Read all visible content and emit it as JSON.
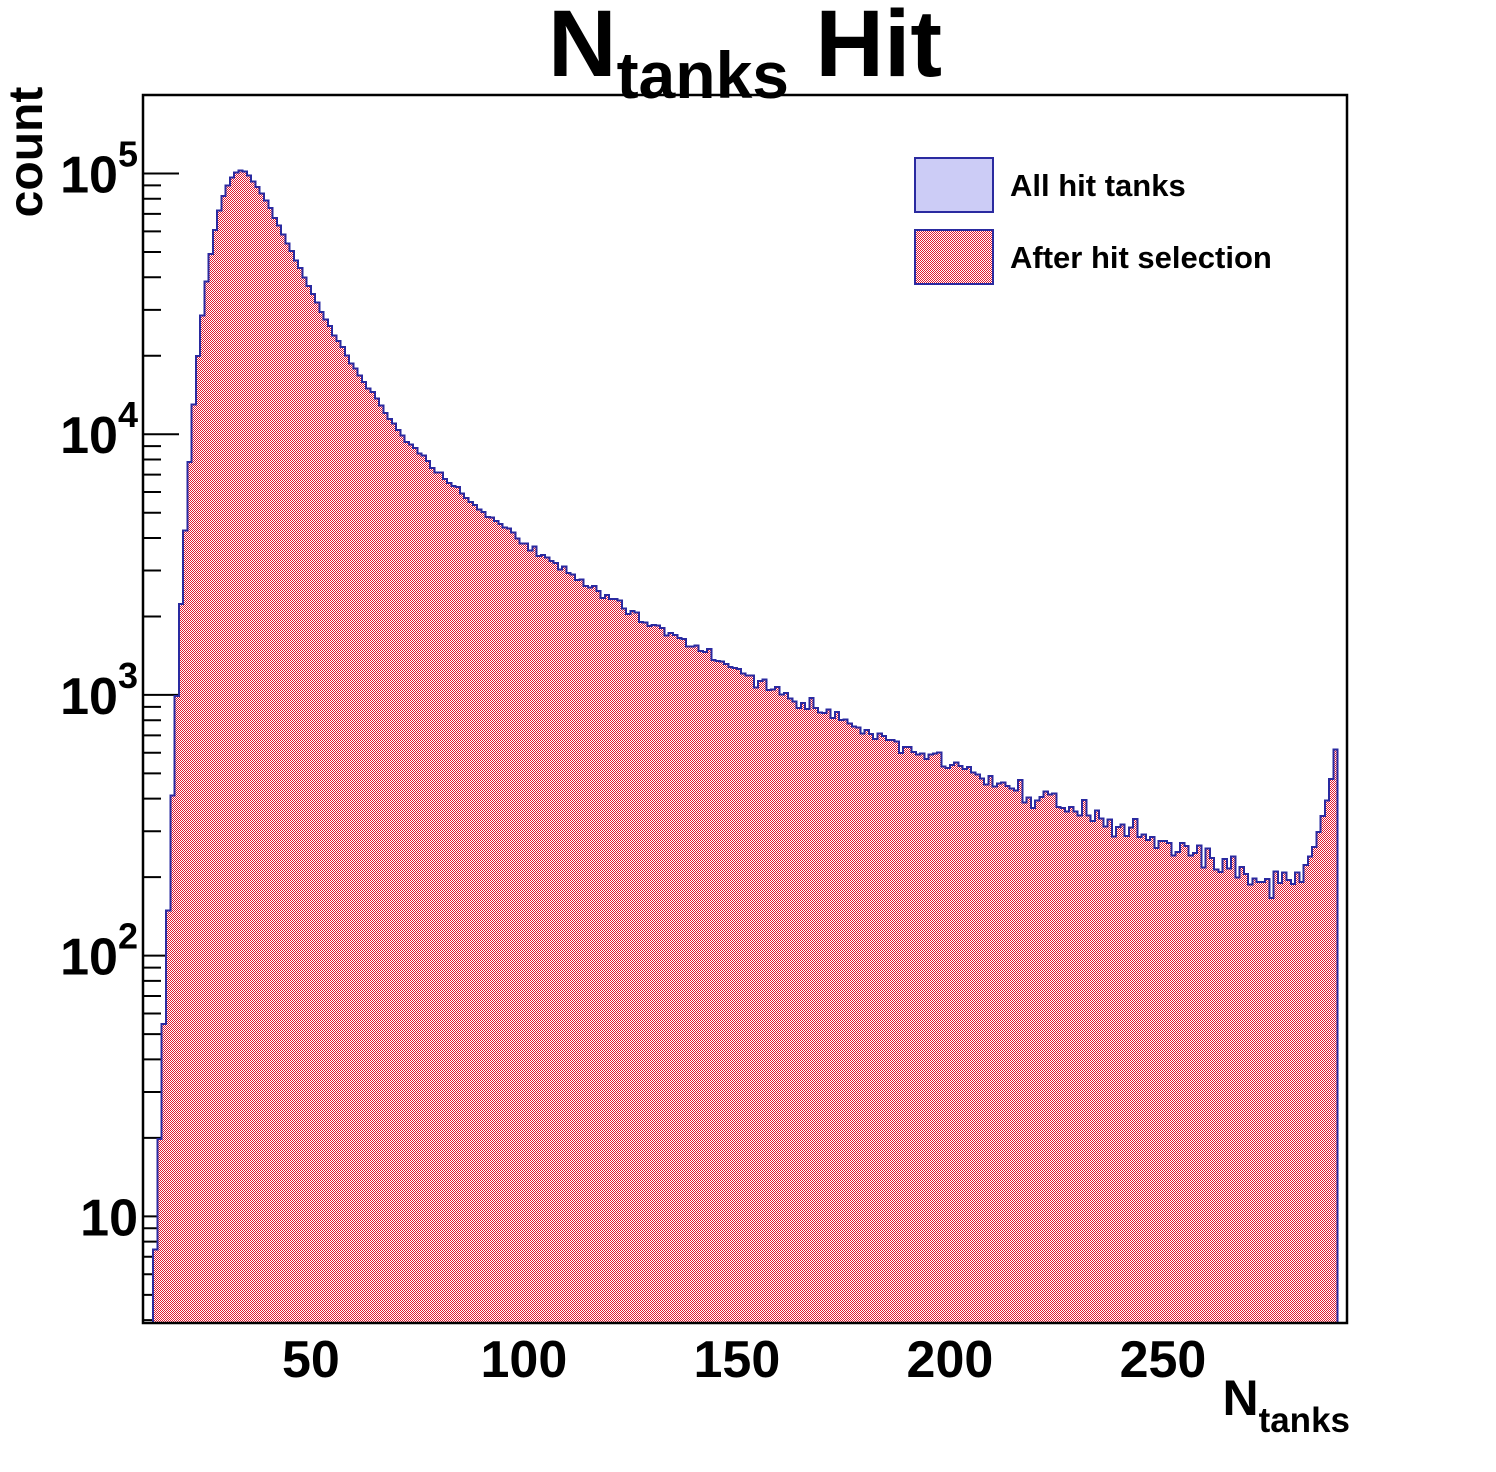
{
  "figure": {
    "title": {
      "prefix": "N",
      "subscript": "tanks",
      "suffix": " Hit"
    },
    "y_axis": {
      "title": "count",
      "scale": "log",
      "decade_exponents": [
        1,
        2,
        3,
        4,
        5
      ],
      "range": [
        3.9,
        200000
      ]
    },
    "x_axis": {
      "title_prefix": "N",
      "title_subscript": "tanks",
      "tick_values": [
        50,
        100,
        150,
        200,
        250
      ],
      "minor_tick_step": 10,
      "range": [
        10.6,
        293.2
      ]
    },
    "legend": [
      {
        "label": "All hit tanks",
        "style": "solid",
        "fill": "#ccccf6",
        "border": "#2a2aa0"
      },
      {
        "label": "After hit selection",
        "style": "checker",
        "fill": "#e11931",
        "border": "#2a2aa0"
      }
    ],
    "colors": {
      "all_tanks_fill": "#ccccf6",
      "selection_red": "#e11931",
      "outline_blue": "#2a2aa0",
      "axis_black": "#000000",
      "background": "#ffffff"
    }
  },
  "chart_data": {
    "type": "bar",
    "subtype": "histogram-log-y",
    "title": "N_tanks Hit",
    "xlabel": "N_tanks",
    "ylabel": "count",
    "x_scale": "linear",
    "y_scale": "log",
    "xlim": [
      10.6,
      293.2
    ],
    "ylim": [
      3.9,
      200000
    ],
    "bin_width": 1,
    "first_bin": 13,
    "last_bin": 290,
    "peak": {
      "x": 33,
      "count": 103000
    },
    "end_spike": {
      "x": 290,
      "count": 630
    },
    "legend_position": "top-right",
    "grid": false,
    "series": [
      {
        "name": "All hit tanks",
        "note_visible_in_pixels": "fully overlapped by second series except shared blue outline"
      },
      {
        "name": "After hit selection",
        "note_visible_in_pixels": "red checker-hatched histogram covering the first series"
      }
    ],
    "anchors": [
      [
        13,
        8
      ],
      [
        14,
        22
      ],
      [
        15,
        55
      ],
      [
        16,
        140
      ],
      [
        17,
        400
      ],
      [
        18,
        1000
      ],
      [
        19,
        2200
      ],
      [
        20,
        4300
      ],
      [
        21,
        7800
      ],
      [
        22,
        13000
      ],
      [
        23,
        20000
      ],
      [
        24,
        28500
      ],
      [
        25,
        38500
      ],
      [
        26,
        49000
      ],
      [
        27,
        61000
      ],
      [
        28,
        72000
      ],
      [
        29,
        82000
      ],
      [
        30,
        90000
      ],
      [
        31,
        96500
      ],
      [
        32,
        101000
      ],
      [
        33,
        103000
      ],
      [
        34,
        101500
      ],
      [
        35,
        98000
      ],
      [
        36,
        93500
      ],
      [
        37,
        89000
      ],
      [
        38,
        84000
      ],
      [
        40,
        73500
      ],
      [
        42,
        63000
      ],
      [
        44,
        54000
      ],
      [
        46,
        46500
      ],
      [
        48,
        40000
      ],
      [
        50,
        34500
      ],
      [
        52,
        29500
      ],
      [
        55,
        24000
      ],
      [
        58,
        20000
      ],
      [
        60,
        17800
      ],
      [
        63,
        15000
      ],
      [
        66,
        12800
      ],
      [
        70,
        10400
      ],
      [
        74,
        8800
      ],
      [
        78,
        7500
      ],
      [
        82,
        6500
      ],
      [
        86,
        5700
      ],
      [
        90,
        5000
      ],
      [
        95,
        4350
      ],
      [
        100,
        3800
      ],
      [
        105,
        3350
      ],
      [
        110,
        2950
      ],
      [
        115,
        2600
      ],
      [
        120,
        2320
      ],
      [
        125,
        2070
      ],
      [
        130,
        1860
      ],
      [
        135,
        1670
      ],
      [
        140,
        1510
      ],
      [
        145,
        1370
      ],
      [
        150,
        1240
      ],
      [
        155,
        1120
      ],
      [
        160,
        1020
      ],
      [
        165,
        930
      ],
      [
        170,
        855
      ],
      [
        175,
        785
      ],
      [
        180,
        725
      ],
      [
        185,
        670
      ],
      [
        190,
        620
      ],
      [
        195,
        575
      ],
      [
        200,
        535
      ],
      [
        205,
        495
      ],
      [
        210,
        462
      ],
      [
        215,
        432
      ],
      [
        220,
        403
      ],
      [
        225,
        377
      ],
      [
        230,
        352
      ],
      [
        235,
        330
      ],
      [
        240,
        310
      ],
      [
        245,
        290
      ],
      [
        250,
        272
      ],
      [
        255,
        254
      ],
      [
        260,
        238
      ],
      [
        265,
        222
      ],
      [
        268,
        212
      ],
      [
        271,
        203
      ],
      [
        274,
        196
      ],
      [
        277,
        193
      ],
      [
        279,
        196
      ],
      [
        281,
        205
      ],
      [
        283,
        222
      ],
      [
        285,
        262
      ],
      [
        286,
        290
      ],
      [
        287,
        330
      ],
      [
        288,
        395
      ],
      [
        289,
        480
      ],
      [
        290,
        630
      ]
    ]
  }
}
